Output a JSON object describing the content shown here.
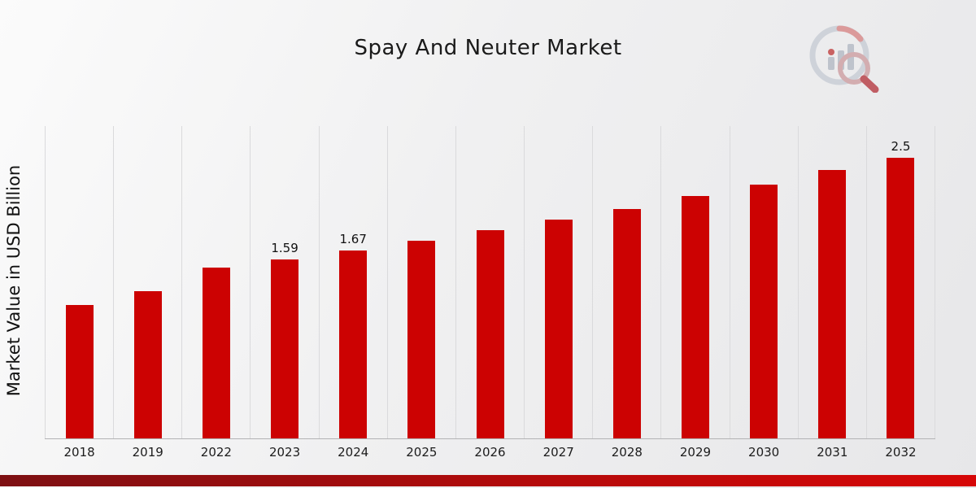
{
  "chart_data": {
    "type": "bar",
    "title": "Spay And Neuter Market",
    "xlabel": "",
    "ylabel": "Market Value in USD Billion",
    "categories": [
      "2018",
      "2019",
      "2022",
      "2023",
      "2024",
      "2025",
      "2026",
      "2027",
      "2028",
      "2029",
      "2030",
      "2031",
      "2032"
    ],
    "values": [
      1.19,
      1.31,
      1.52,
      1.59,
      1.67,
      1.76,
      1.85,
      1.95,
      2.04,
      2.16,
      2.26,
      2.39,
      2.5
    ],
    "value_labels": [
      "",
      "",
      "",
      "1.59",
      "1.67",
      "",
      "",
      "",
      "",
      "",
      "",
      "",
      "2.5"
    ],
    "ylim": [
      0,
      2.78
    ],
    "grid": "vertical-only",
    "legend": "none",
    "bar_color": "#CC0202"
  },
  "branding": {
    "logo": "market-research-chart-magnifier-logo",
    "accent_color": "#CC0202",
    "accent_gradient_left": "#7D1013",
    "accent_gradient_right": "#D60707"
  }
}
